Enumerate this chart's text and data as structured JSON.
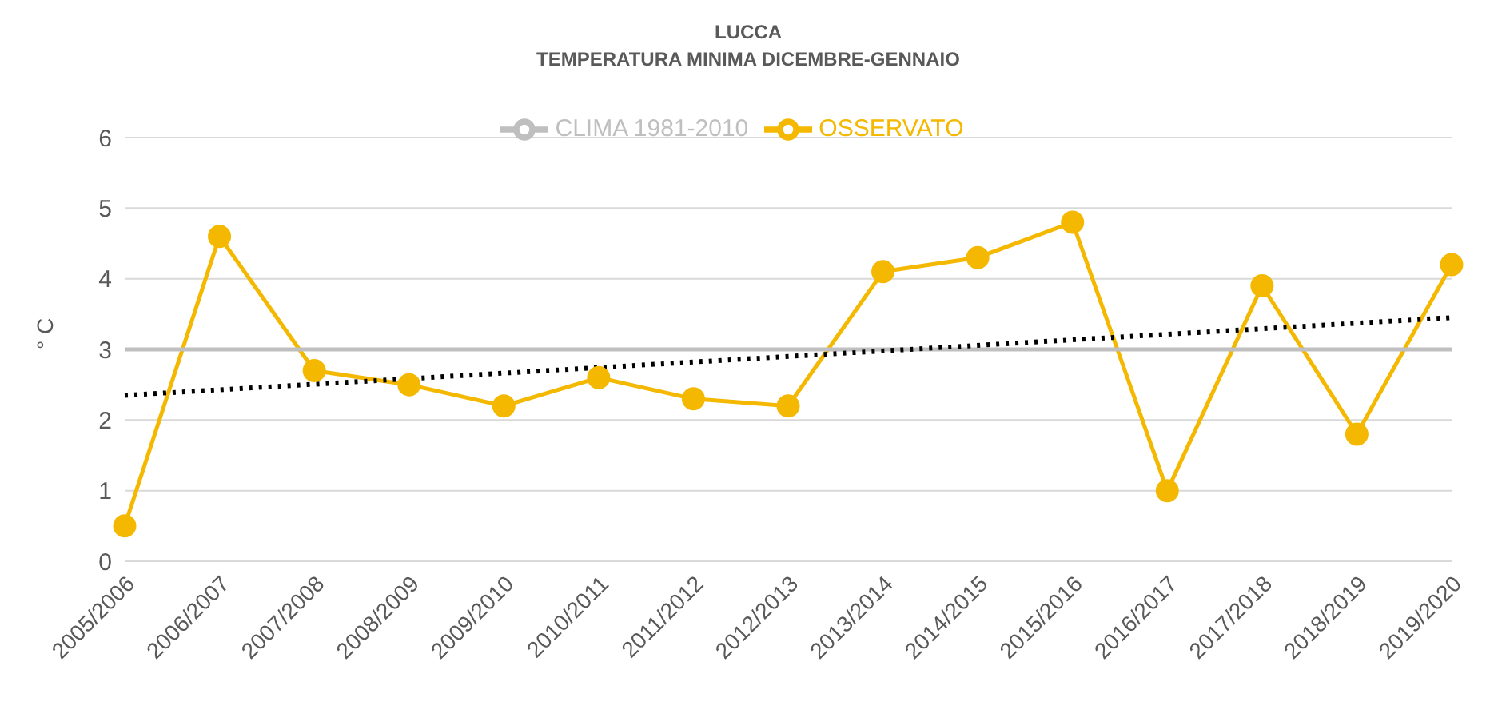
{
  "chart_data": {
    "type": "line",
    "title": "LUCCA",
    "subtitle": "TEMPERATURA MINIMA DICEMBRE-GENNAIO",
    "ylabel": "° C",
    "categories": [
      "2005/2006",
      "2006/2007",
      "2007/2008",
      "2008/2009",
      "2009/2010",
      "2010/2011",
      "2011/2012",
      "2012/2013",
      "2013/2014",
      "2014/2015",
      "2015/2016",
      "2016/2017",
      "2017/2018",
      "2018/2019",
      "2019/2020"
    ],
    "series": [
      {
        "name": "OSSERVATO",
        "color": "#f5b800",
        "marker": "circle",
        "line_style": "solid",
        "values": [
          0.5,
          4.6,
          2.7,
          2.5,
          2.2,
          2.6,
          2.3,
          2.2,
          4.1,
          4.3,
          4.8,
          1.0,
          3.9,
          1.8,
          4.2
        ]
      },
      {
        "name": "CLIMA 1981-2010",
        "color": "#bfbfbf",
        "marker": "none",
        "line_style": "solid",
        "values": [
          3,
          3,
          3,
          3,
          3,
          3,
          3,
          3,
          3,
          3,
          3,
          3,
          3,
          3,
          3
        ]
      },
      {
        "color": "#000000",
        "marker": "none",
        "line_style": "dotted",
        "x": [
          "2005/2006",
          "2019/2020"
        ],
        "values": [
          2.35,
          3.45
        ]
      }
    ],
    "ylim": [
      0,
      6
    ],
    "yticks": [
      0,
      1,
      2,
      3,
      4,
      5,
      6
    ],
    "grid": "y",
    "legend": "top"
  }
}
